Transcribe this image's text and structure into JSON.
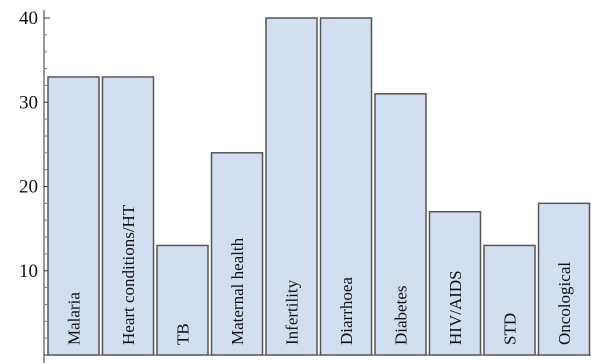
{
  "chart_data": {
    "type": "bar",
    "title": "",
    "xlabel": "",
    "ylabel": "",
    "categories": [
      "Malaria",
      "Heart conditions/HT",
      "TB",
      "Maternal health",
      "Infertility",
      "Diarrhoea",
      "Diabetes",
      "HIV/AIDS",
      "STD",
      "Oncological"
    ],
    "values": [
      33,
      33,
      13,
      24,
      40,
      40,
      31,
      17,
      13,
      18
    ],
    "ylim": [
      0,
      40
    ],
    "yticks": [
      10,
      20,
      30,
      40
    ],
    "grid": false,
    "legend": "none",
    "colors": {
      "bar_fill": "#d3dff1",
      "bar_stroke": "#555555",
      "axis": "#333333"
    }
  }
}
